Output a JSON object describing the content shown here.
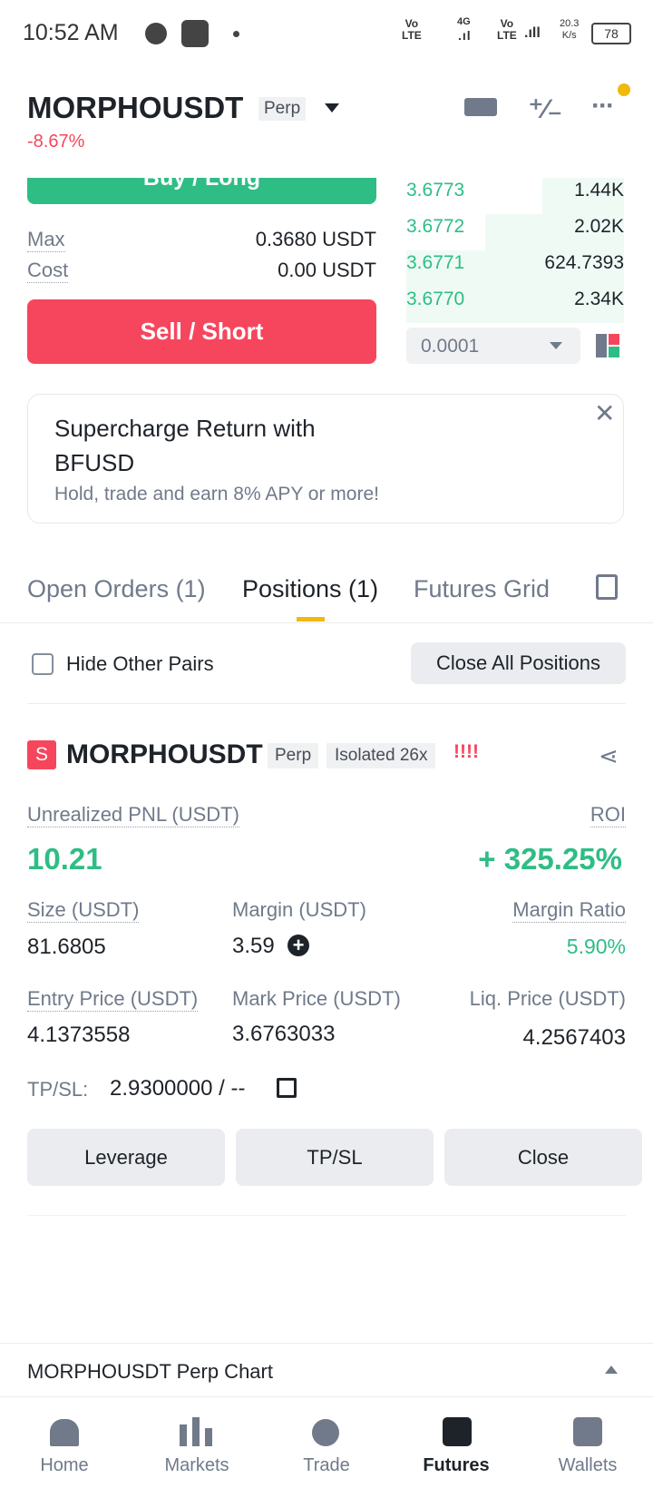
{
  "status_bar": {
    "time": "10:52 AM",
    "volte_top": "Vo",
    "volte_bottom": "LTE",
    "network": "4G",
    "speed": "20.3",
    "speed_unit": "K/s",
    "battery": "78"
  },
  "header": {
    "symbol": "MORPHOUSDT",
    "tag": "Perp",
    "change": "-8.67%"
  },
  "order_panel": {
    "buy": "Buy / Long",
    "max_label": "Max",
    "max_value": "0.3680 USDT",
    "cost_label": "Cost",
    "cost_value": "0.00 USDT",
    "sell": "Sell / Short"
  },
  "order_book": {
    "rows": [
      [
        "3.6773",
        "1.44K"
      ],
      [
        "3.6772",
        "2.02K"
      ],
      [
        "3.6771",
        "624.7393"
      ],
      [
        "3.6770",
        "2.34K"
      ]
    ],
    "depth": "0.0001"
  },
  "banner": {
    "title_line1": "Supercharge Return with",
    "title_line2": "BFUSD",
    "subtitle": "Hold, trade and earn 8% APY or more!"
  },
  "tabs": {
    "items": [
      "Open Orders (1)",
      "Positions (1)",
      "Futures Grid"
    ],
    "active": 1
  },
  "filter": {
    "hide_label": "Hide Other Pairs",
    "close_all": "Close All Positions"
  },
  "position": {
    "side": "S",
    "symbol": "MORPHOUSDT",
    "tag": "Perp",
    "mode": "Isolated 26x",
    "alert": "!!!!",
    "pnl_label": "Unrealized PNL (USDT)",
    "pnl": "10.21",
    "roi_label": "ROI",
    "roi": "+ 325.25%",
    "size_label": "Size (USDT)",
    "size": "81.6805",
    "margin_label": "Margin (USDT)",
    "margin": "3.59",
    "ratio_label": "Margin Ratio",
    "ratio": "5.90%",
    "entry_label": "Entry Price (USDT)",
    "entry": "4.1373558",
    "mark_label": "Mark Price (USDT)",
    "mark": "3.6763033",
    "liq_label": "Liq. Price (USDT)",
    "liq": "4.2567403",
    "tpsl_label": "TP/SL:",
    "tpsl": "2.9300000 / --",
    "buttons": [
      "Leverage",
      "TP/SL",
      "Close"
    ]
  },
  "chart_bar": {
    "label": "MORPHOUSDT Perp Chart"
  },
  "nav": {
    "items": [
      "Home",
      "Markets",
      "Trade",
      "Futures",
      "Wallets"
    ],
    "active": 3
  }
}
